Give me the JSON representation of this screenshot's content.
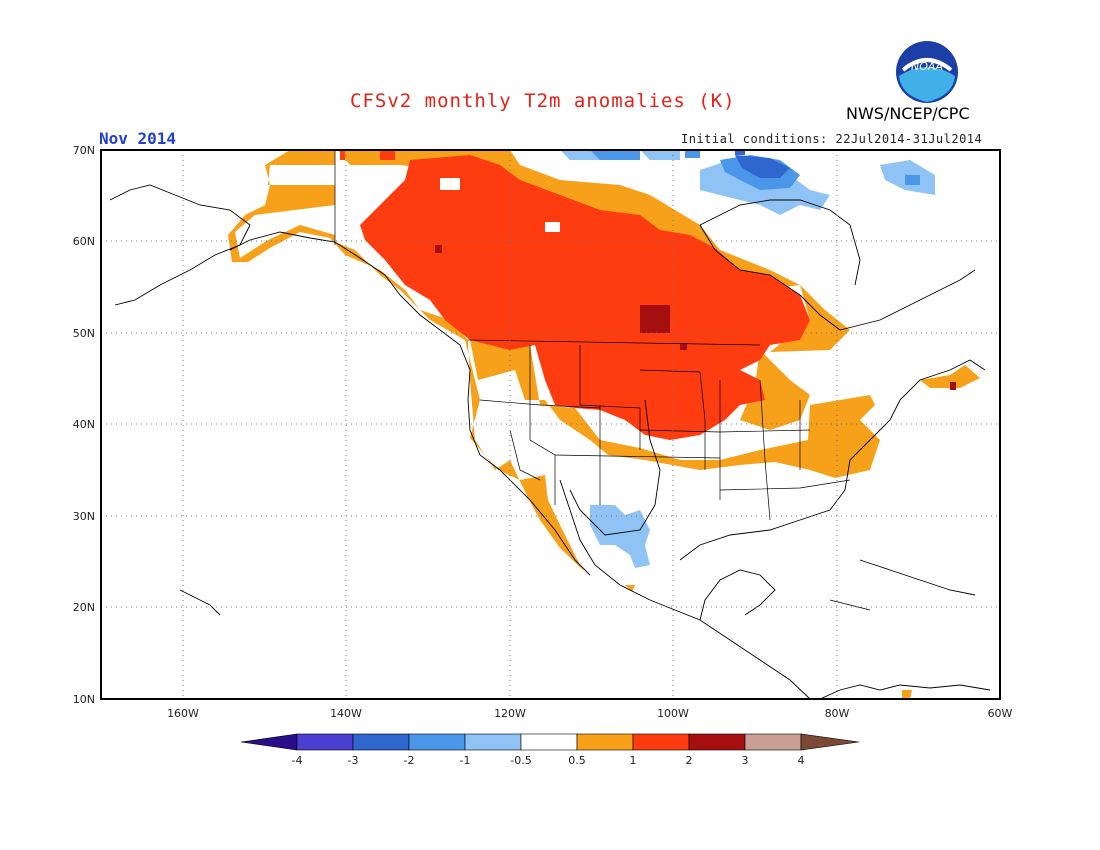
{
  "title": "CFSv2 monthly T2m anomalies (K)",
  "agency": "NWS/NCEP/CPC",
  "logo_text": "NOAA",
  "month": "Nov 2014",
  "initial_conditions": "Initial conditions: 22Jul2014-31Jul2014",
  "lat_labels": [
    "70N",
    "60N",
    "50N",
    "40N",
    "30N",
    "20N",
    "10N"
  ],
  "lon_labels": [
    "160W",
    "140W",
    "120W",
    "100W",
    "80W",
    "60W"
  ],
  "colorbar": {
    "labels": [
      "-4",
      "-3",
      "-2",
      "-1",
      "-0.5",
      "0.5",
      "1",
      "2",
      "3",
      "4"
    ],
    "colors": [
      "#2a0d8a",
      "#4b3fcf",
      "#2f67cf",
      "#4a97ea",
      "#8fc3f5",
      "#ffffff",
      "#f7a11a",
      "#ff3c0f",
      "#a50f0f",
      "#c9a091",
      "#7a4a36"
    ]
  },
  "map_data": {
    "region": "North America, 170W-60W, 10N-70N",
    "anomaly_regions": [
      {
        "area": "Western/Central Canada and Northern Plains",
        "anomaly_range": "1 to 2"
      },
      {
        "area": "Central Manitoba",
        "anomaly_range": "2 to 3"
      },
      {
        "area": "Alaska, Pacific coast, Midwest, Ohio Valley",
        "anomaly_range": "0.5 to 1"
      },
      {
        "area": "Northern Quebec / Hudson Strait",
        "anomaly_range": "-1 to -3"
      },
      {
        "area": "Northern Mexico / Texas",
        "anomaly_range": "-0.5 to -1"
      }
    ]
  }
}
